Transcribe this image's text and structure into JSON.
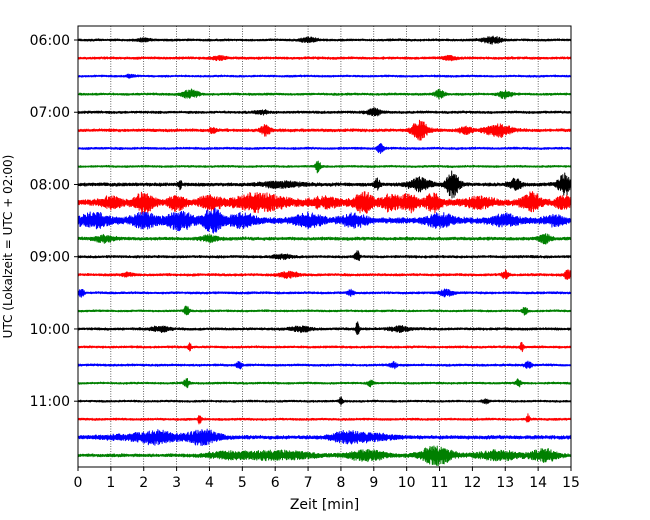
{
  "chart_data": {
    "type": "line",
    "title": "",
    "xlabel": "Zeit  [min]",
    "ylabel": "UTC (Lokalzeit = UTC + 02:00)",
    "xlim": [
      0,
      15
    ],
    "x_ticks": [
      "0",
      "1",
      "2",
      "3",
      "4",
      "5",
      "6",
      "7",
      "8",
      "9",
      "10",
      "11",
      "12",
      "13",
      "14",
      "15"
    ],
    "y_tick_labels": [
      "06:00",
      "07:00",
      "08:00",
      "09:00",
      "10:00",
      "11:00"
    ],
    "start_time": "06:00",
    "trace_interval_min": 15,
    "grid": "vertical dotted",
    "trace_colors": [
      "#000000",
      "#ff0000",
      "#0000ff",
      "#008000"
    ],
    "traces": [
      {
        "start": "06:00",
        "color": "#000000",
        "noise": 0.9,
        "events": [
          [
            7.0,
            0.25,
            2.5
          ],
          [
            12.6,
            0.3,
            3.5
          ],
          [
            2.0,
            0.2,
            1.5
          ]
        ]
      },
      {
        "start": "06:15",
        "color": "#ff0000",
        "noise": 1.0,
        "events": [
          [
            4.3,
            0.2,
            2.0
          ],
          [
            11.3,
            0.2,
            2.0
          ]
        ]
      },
      {
        "start": "06:30",
        "color": "#0000ff",
        "noise": 0.8,
        "events": [
          [
            1.6,
            0.15,
            1.5
          ]
        ]
      },
      {
        "start": "06:45",
        "color": "#008000",
        "noise": 0.9,
        "events": [
          [
            3.4,
            0.25,
            4.5
          ],
          [
            11.0,
            0.15,
            4.0
          ],
          [
            13.0,
            0.2,
            4.0
          ]
        ]
      },
      {
        "start": "07:00",
        "color": "#000000",
        "noise": 1.0,
        "events": [
          [
            9.0,
            0.2,
            3.5
          ],
          [
            5.6,
            0.2,
            2.0
          ]
        ]
      },
      {
        "start": "07:15",
        "color": "#ff0000",
        "noise": 1.2,
        "events": [
          [
            5.7,
            0.15,
            5.0
          ],
          [
            10.4,
            0.25,
            9.0
          ],
          [
            11.8,
            0.2,
            3.5
          ],
          [
            12.8,
            0.4,
            6.0
          ],
          [
            4.1,
            0.1,
            3.0
          ]
        ]
      },
      {
        "start": "07:30",
        "color": "#0000ff",
        "noise": 0.9,
        "events": [
          [
            9.2,
            0.1,
            4.5
          ]
        ]
      },
      {
        "start": "07:45",
        "color": "#008000",
        "noise": 0.8,
        "events": [
          [
            7.3,
            0.08,
            6.0
          ]
        ]
      },
      {
        "start": "08:00",
        "color": "#000000",
        "noise": 1.4,
        "events": [
          [
            3.1,
            0.05,
            4.5
          ],
          [
            9.1,
            0.1,
            5.0
          ],
          [
            10.4,
            0.35,
            6.0
          ],
          [
            11.4,
            0.2,
            13.0
          ],
          [
            13.3,
            0.2,
            5.0
          ],
          [
            14.8,
            0.2,
            11.0
          ],
          [
            6.2,
            0.6,
            3.0
          ]
        ]
      },
      {
        "start": "08:15",
        "color": "#ff0000",
        "noise": 2.5,
        "events": [
          [
            1.0,
            0.3,
            5.0
          ],
          [
            2.0,
            0.3,
            9.0
          ],
          [
            3.0,
            0.25,
            7.0
          ],
          [
            4.0,
            0.3,
            6.0
          ],
          [
            5.5,
            0.8,
            8.0
          ],
          [
            8.7,
            0.3,
            9.0
          ],
          [
            9.5,
            0.3,
            7.0
          ],
          [
            10.1,
            0.25,
            8.0
          ],
          [
            10.8,
            0.25,
            8.0
          ],
          [
            12.2,
            0.4,
            5.0
          ],
          [
            13.8,
            0.3,
            8.0
          ],
          [
            14.8,
            0.25,
            6.0
          ],
          [
            7.5,
            0.5,
            4.0
          ]
        ]
      },
      {
        "start": "08:30",
        "color": "#0000ff",
        "noise": 2.5,
        "events": [
          [
            0.5,
            0.5,
            6.0
          ],
          [
            2.0,
            0.4,
            7.0
          ],
          [
            3.1,
            0.4,
            8.0
          ],
          [
            4.1,
            0.3,
            11.0
          ],
          [
            5.0,
            0.4,
            6.0
          ],
          [
            7.0,
            0.4,
            6.0
          ],
          [
            8.4,
            0.4,
            5.0
          ],
          [
            11.0,
            0.4,
            6.0
          ],
          [
            13.0,
            0.4,
            5.0
          ],
          [
            14.5,
            0.3,
            4.0
          ]
        ]
      },
      {
        "start": "08:45",
        "color": "#008000",
        "noise": 1.3,
        "events": [
          [
            0.8,
            0.3,
            3.0
          ],
          [
            14.2,
            0.2,
            4.0
          ],
          [
            4.0,
            0.3,
            2.5
          ]
        ]
      },
      {
        "start": "09:00",
        "color": "#000000",
        "noise": 1.0,
        "events": [
          [
            8.5,
            0.08,
            5.0
          ],
          [
            6.2,
            0.3,
            2.0
          ]
        ]
      },
      {
        "start": "09:15",
        "color": "#ff0000",
        "noise": 1.0,
        "events": [
          [
            6.4,
            0.3,
            3.0
          ],
          [
            13.0,
            0.1,
            4.0
          ],
          [
            14.9,
            0.1,
            5.0
          ],
          [
            1.5,
            0.2,
            2.0
          ]
        ]
      },
      {
        "start": "09:30",
        "color": "#0000ff",
        "noise": 0.9,
        "events": [
          [
            0.1,
            0.08,
            4.0
          ],
          [
            8.3,
            0.1,
            3.0
          ],
          [
            11.2,
            0.2,
            3.5
          ]
        ]
      },
      {
        "start": "09:45",
        "color": "#008000",
        "noise": 0.8,
        "events": [
          [
            3.3,
            0.08,
            5.0
          ],
          [
            13.6,
            0.08,
            4.0
          ]
        ]
      },
      {
        "start": "10:00",
        "color": "#000000",
        "noise": 1.0,
        "events": [
          [
            8.5,
            0.05,
            8.0
          ],
          [
            2.5,
            0.3,
            2.5
          ],
          [
            6.8,
            0.3,
            2.5
          ],
          [
            9.8,
            0.3,
            2.5
          ]
        ]
      },
      {
        "start": "10:15",
        "color": "#ff0000",
        "noise": 0.9,
        "events": [
          [
            3.4,
            0.05,
            4.0
          ],
          [
            13.5,
            0.05,
            5.0
          ]
        ]
      },
      {
        "start": "10:30",
        "color": "#0000ff",
        "noise": 0.9,
        "events": [
          [
            4.9,
            0.08,
            4.0
          ],
          [
            9.6,
            0.1,
            3.5
          ],
          [
            13.7,
            0.1,
            3.5
          ]
        ]
      },
      {
        "start": "10:45",
        "color": "#008000",
        "noise": 0.8,
        "events": [
          [
            3.3,
            0.08,
            5.0
          ],
          [
            13.4,
            0.08,
            4.0
          ],
          [
            8.9,
            0.1,
            3.0
          ]
        ]
      },
      {
        "start": "11:00",
        "color": "#000000",
        "noise": 0.8,
        "events": [
          [
            8.0,
            0.06,
            4.0
          ],
          [
            12.4,
            0.1,
            2.0
          ]
        ]
      },
      {
        "start": "11:15",
        "color": "#ff0000",
        "noise": 0.9,
        "events": [
          [
            3.7,
            0.05,
            4.5
          ],
          [
            13.7,
            0.05,
            4.5
          ]
        ]
      },
      {
        "start": "11:30",
        "color": "#0000ff",
        "noise": 1.5,
        "events": [
          [
            2.4,
            0.5,
            4.0
          ],
          [
            3.8,
            0.5,
            6.5
          ],
          [
            8.2,
            0.5,
            5.0
          ],
          [
            2.0,
            1.2,
            2.5
          ],
          [
            9.0,
            0.6,
            3.0
          ]
        ]
      },
      {
        "start": "11:45",
        "color": "#008000",
        "noise": 1.3,
        "events": [
          [
            6.0,
            1.2,
            4.0
          ],
          [
            8.8,
            0.6,
            5.0
          ],
          [
            10.9,
            0.5,
            9.0
          ],
          [
            12.8,
            0.7,
            4.5
          ],
          [
            14.2,
            0.4,
            6.0
          ],
          [
            4.5,
            0.6,
            2.5
          ]
        ]
      }
    ]
  }
}
